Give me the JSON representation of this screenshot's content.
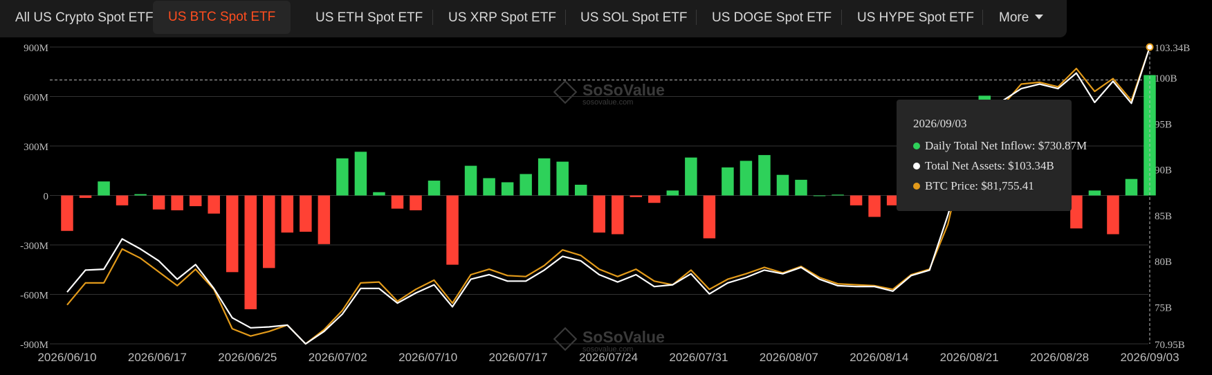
{
  "tabs": [
    {
      "label": "All US Crypto Spot ETF",
      "active": false
    },
    {
      "label": "US BTC Spot ETF",
      "active": true
    },
    {
      "label": "US ETH Spot ETF",
      "active": false
    },
    {
      "label": "US XRP Spot ETF",
      "active": false
    },
    {
      "label": "US SOL Spot ETF",
      "active": false
    },
    {
      "label": "US DOGE Spot ETF",
      "active": false
    },
    {
      "label": "US HYPE Spot ETF",
      "active": false
    }
  ],
  "more_label": "More",
  "watermark": {
    "main": "SoSoValue",
    "sub": "sosovalue.com"
  },
  "tooltip": {
    "date": "2026/09/03",
    "rows": [
      {
        "label": "Daily Total Net Inflow: $730.87M",
        "color": "#2ed15a"
      },
      {
        "label": "Total Net Assets: $103.34B",
        "color": "#ffffff"
      },
      {
        "label": "BTC Price: $81,755.41",
        "color": "#e29a1a"
      }
    ]
  },
  "colors": {
    "inflow": "#2ed15a",
    "outflow": "#ff4134",
    "assets": "#ffffff",
    "price": "#e29a1a",
    "grid": "#333333",
    "axis_text": "#bdbdbd"
  },
  "chart_data": {
    "type": "bar",
    "y_left": {
      "min": -900,
      "max": 900,
      "ticks": [
        -900,
        -600,
        -300,
        0,
        300,
        600,
        900
      ],
      "tick_labels": [
        "-900M",
        "-600M",
        "-300M",
        "0",
        "300M",
        "600M",
        "900M"
      ]
    },
    "y_right": {
      "min": 70.95,
      "max": 103.34,
      "ticks": [
        70.95,
        75,
        80,
        85,
        90,
        95,
        100,
        103.34
      ],
      "tick_labels": [
        "70.95B",
        "75B",
        "80B",
        "85B",
        "90B",
        "95B",
        "100B",
        "103.34B"
      ]
    },
    "x_tick_labels": [
      "2026/06/10",
      "2026/06/17",
      "2026/06/25",
      "2026/07/02",
      "2026/07/10",
      "2026/07/17",
      "2026/07/24",
      "2026/07/31",
      "2026/08/07",
      "2026/08/14",
      "2026/08/21",
      "2026/08/28",
      "2026/09/03"
    ],
    "reference_line": 700,
    "series": [
      {
        "name": "Daily Total Net Inflow",
        "kind": "bar",
        "axis": "left",
        "values": [
          -215,
          -15,
          85,
          -60,
          8,
          -85,
          -90,
          -65,
          -110,
          -465,
          -690,
          -440,
          -225,
          -220,
          -295,
          225,
          265,
          20,
          -80,
          -90,
          90,
          -420,
          180,
          105,
          80,
          130,
          225,
          205,
          65,
          -225,
          -235,
          -10,
          -45,
          30,
          230,
          -260,
          170,
          210,
          245,
          125,
          95,
          0,
          5,
          -60,
          -130,
          -60,
          -20,
          5,
          15,
          10,
          605,
          300,
          150,
          100,
          50,
          -200,
          30,
          -235,
          100,
          730
        ]
      },
      {
        "name": "Total Net Assets",
        "kind": "line",
        "axis": "right",
        "values": [
          76.6,
          79.0,
          79.1,
          82.4,
          81.3,
          80.0,
          78.0,
          79.6,
          77.0,
          73.8,
          72.7,
          72.8,
          73.0,
          70.95,
          72.3,
          74.2,
          77.0,
          77.0,
          75.4,
          76.5,
          77.4,
          75.0,
          78.0,
          78.5,
          77.8,
          77.8,
          79.0,
          80.5,
          80.0,
          78.5,
          77.7,
          78.5,
          77.2,
          77.4,
          78.6,
          76.4,
          77.6,
          78.2,
          79.0,
          78.6,
          79.3,
          78.0,
          77.3,
          77.2,
          77.2,
          76.7,
          78.4,
          79.0,
          85.0,
          92.0,
          95.0,
          97.5,
          98.8,
          99.3,
          98.8,
          100.5,
          97.3,
          99.6,
          97.2,
          103.34
        ]
      },
      {
        "name": "BTC Price",
        "kind": "line",
        "axis": "right",
        "values": [
          75.2,
          77.6,
          77.6,
          81.3,
          80.3,
          78.8,
          77.3,
          79.1,
          76.9,
          72.6,
          71.8,
          72.3,
          73.0,
          70.95,
          72.5,
          74.6,
          77.6,
          77.7,
          75.6,
          76.9,
          77.9,
          75.4,
          78.5,
          79.1,
          78.4,
          78.3,
          79.5,
          81.2,
          80.6,
          79.1,
          78.3,
          79.1,
          77.8,
          77.4,
          79.0,
          76.9,
          78.0,
          78.6,
          79.3,
          78.7,
          79.4,
          78.2,
          77.5,
          77.4,
          77.3,
          76.9,
          78.5,
          79.1,
          84.0,
          92.5,
          95.5,
          97.0,
          99.3,
          99.5,
          99.0,
          101.0,
          98.5,
          99.9,
          97.5,
          103.34
        ]
      }
    ]
  }
}
